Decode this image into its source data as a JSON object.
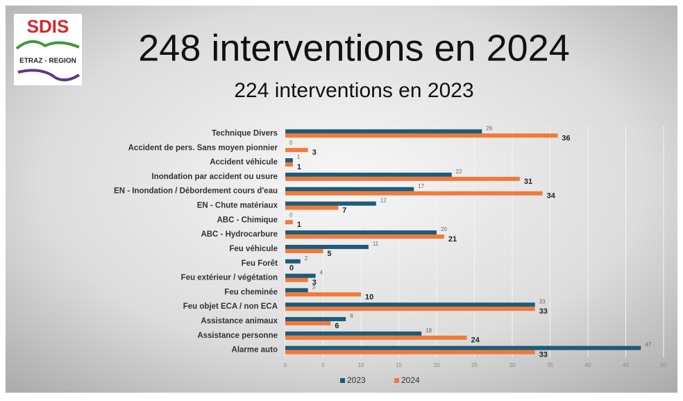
{
  "logo": {
    "title": "SDIS",
    "subtitle": "ETRAZ - REGION"
  },
  "chart_data": {
    "type": "bar",
    "orientation": "horizontal",
    "title": "248 interventions en 2024",
    "subtitle": "224 interventions en 2023",
    "categories": [
      "Technique Divers",
      "Accident de pers. Sans moyen pionnier",
      "Accident véhicule",
      "Inondation par accident ou usure",
      "EN - Inondation / Débordement cours d'eau",
      "EN - Chute matériaux",
      "ABC - Chimique",
      "ABC - Hydrocarbure",
      "Feu véhicule",
      "Feu Forêt",
      "Feu extérieur / végétation",
      "Feu cheminée",
      "Feu objet ECA / non ECA",
      "Assistance animaux",
      "Assistance personne",
      "Alarme auto"
    ],
    "series": [
      {
        "name": "2023",
        "color": "#1d5b79",
        "values": [
          26,
          0,
          1,
          22,
          17,
          12,
          0,
          20,
          11,
          2,
          4,
          3,
          33,
          8,
          18,
          47
        ]
      },
      {
        "name": "2024",
        "color": "#f07a3a",
        "values": [
          36,
          3,
          1,
          31,
          34,
          7,
          1,
          21,
          5,
          0,
          3,
          10,
          33,
          6,
          24,
          33
        ]
      }
    ],
    "xlim": [
      0,
      50
    ],
    "xticks": [
      0,
      5,
      10,
      15,
      20,
      25,
      30,
      35,
      40,
      45,
      50
    ],
    "grid": true,
    "legend": "bottom"
  }
}
